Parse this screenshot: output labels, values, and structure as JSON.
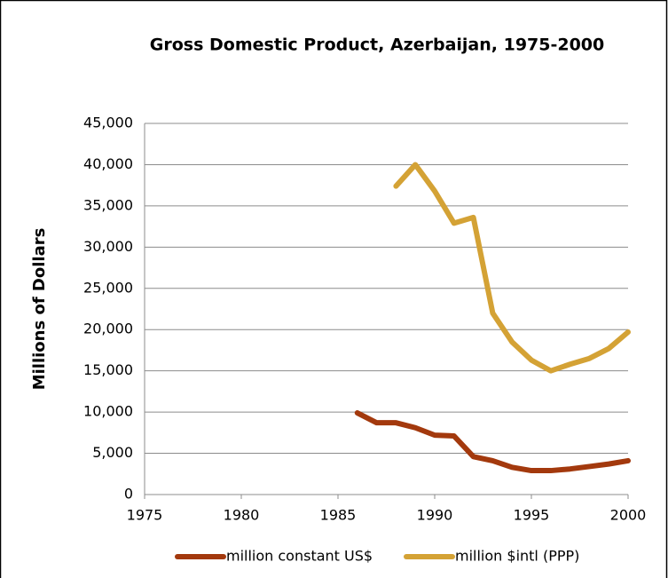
{
  "chart_data": {
    "type": "line",
    "title": "Gross Domestic Product, Azerbaijan, 1975-2000",
    "y_label": "Millions of Dollars",
    "x": [
      1986,
      1987,
      1988,
      1989,
      1990,
      1991,
      1992,
      1993,
      1994,
      1995,
      1996,
      1997,
      1998,
      1999,
      2000
    ],
    "xlim": [
      1975,
      2000
    ],
    "xticks": [
      1975,
      1980,
      1985,
      1990,
      1995,
      2000
    ],
    "ylim": [
      0,
      45000
    ],
    "yticks": [
      0,
      {
        "value": 5000,
        "label": "5,000"
      },
      {
        "value": 10000,
        "label": "10,000"
      },
      {
        "value": 15000,
        "label": "15,000"
      },
      {
        "value": 20000,
        "label": "20,000"
      },
      {
        "value": 25000,
        "label": "25,000"
      },
      {
        "value": 30000,
        "label": "30,000"
      },
      {
        "value": 35000,
        "label": "35,000"
      },
      {
        "value": 40000,
        "label": "40,000"
      },
      {
        "value": 45000,
        "label": "45,000"
      }
    ],
    "grid": true,
    "legend": "bottom",
    "series": [
      {
        "name": "million constant US$",
        "color": "#a3390d",
        "values": [
          9900,
          8700,
          8700,
          8100,
          7200,
          7100,
          4600,
          4100,
          3300,
          2900,
          2900,
          3100,
          3400,
          3700,
          4100
        ]
      },
      {
        "name": "million $intl (PPP)",
        "color": "#d4a235",
        "values": [
          null,
          null,
          37400,
          40000,
          36800,
          32900,
          33600,
          22000,
          18500,
          16300,
          15000,
          15800,
          16500,
          17700,
          19700
        ]
      }
    ]
  }
}
